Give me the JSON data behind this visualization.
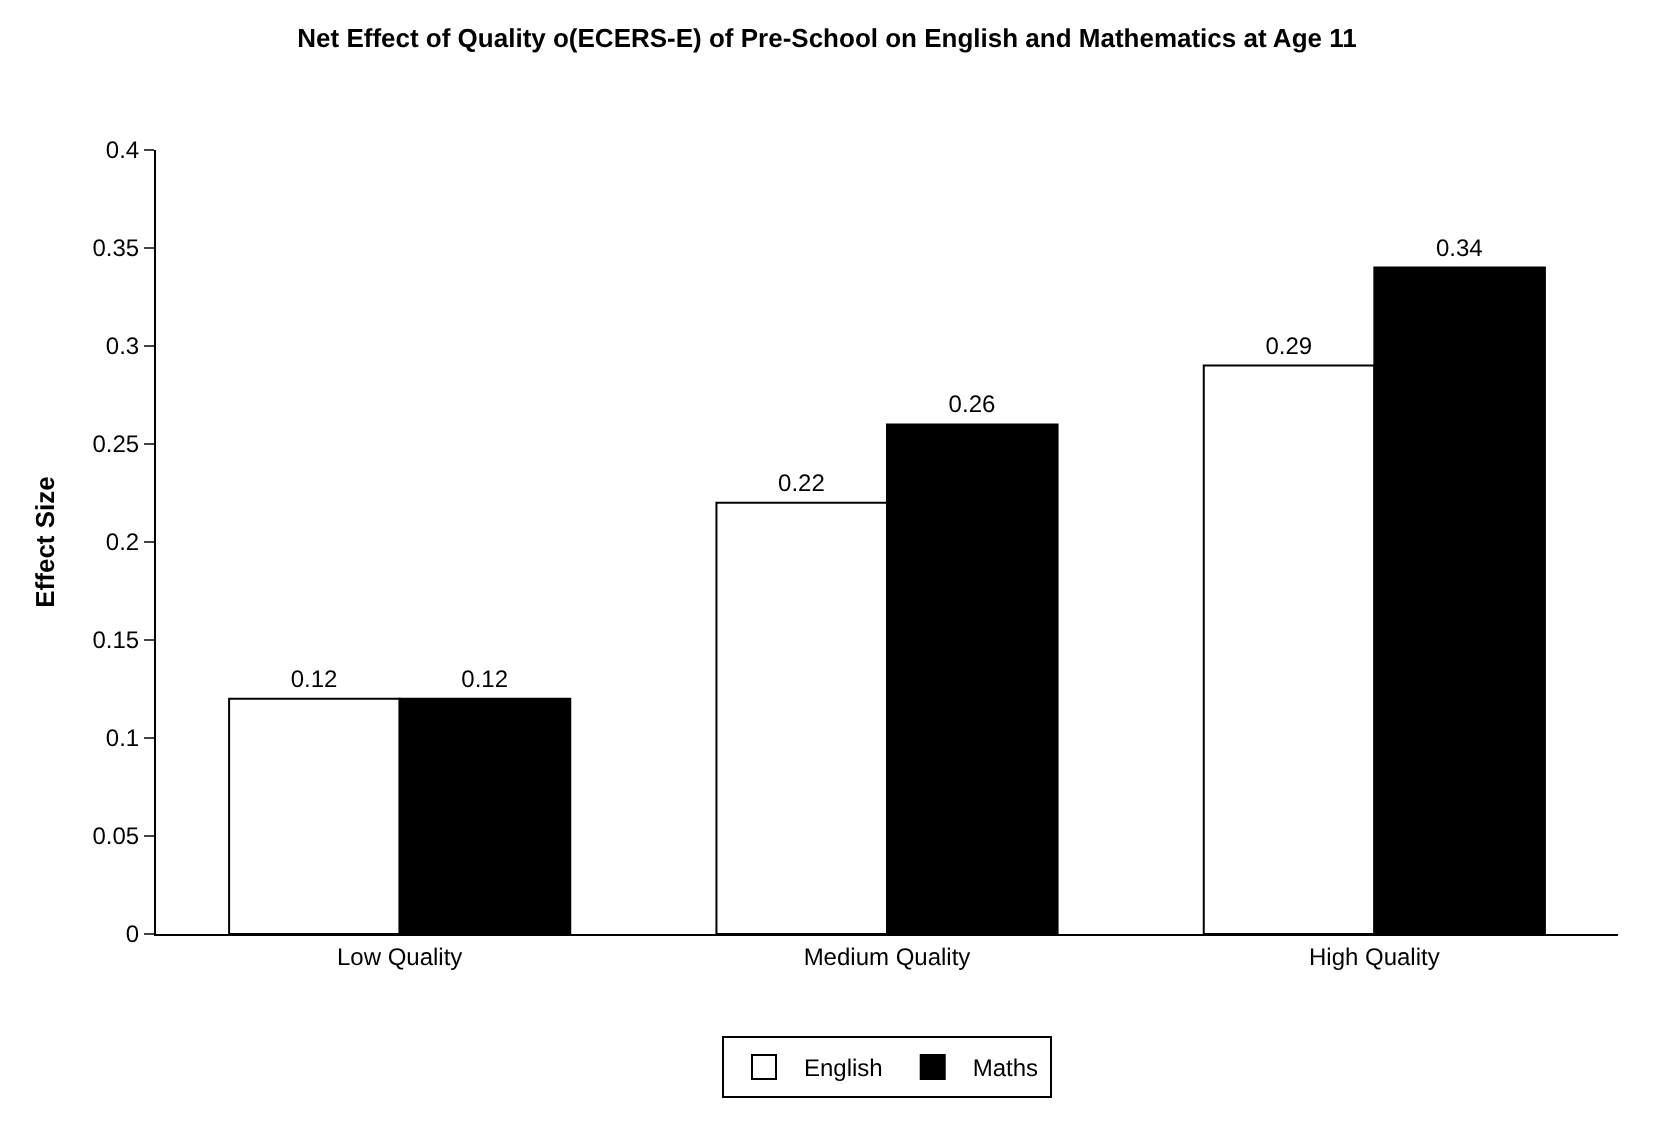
{
  "chart_data": {
    "type": "bar",
    "title": "Net Effect of Quality o(ECERS-E) of Pre-School on English and Mathematics at Age 11",
    "ylabel": "Effect Size",
    "categories": [
      "Low Quality",
      "Medium Quality",
      "High Quality"
    ],
    "series": [
      {
        "name": "English",
        "color": "#ffffff",
        "values": [
          0.12,
          0.22,
          0.29
        ]
      },
      {
        "name": "Maths",
        "color": "#000000",
        "values": [
          0.12,
          0.26,
          0.34
        ]
      }
    ],
    "ylim": [
      0,
      0.4
    ],
    "yticks": [
      0,
      0.05,
      0.1,
      0.15,
      0.2,
      0.25,
      0.3,
      0.35,
      0.4
    ],
    "data_labels": true,
    "grid": false,
    "legend": "bottom"
  }
}
